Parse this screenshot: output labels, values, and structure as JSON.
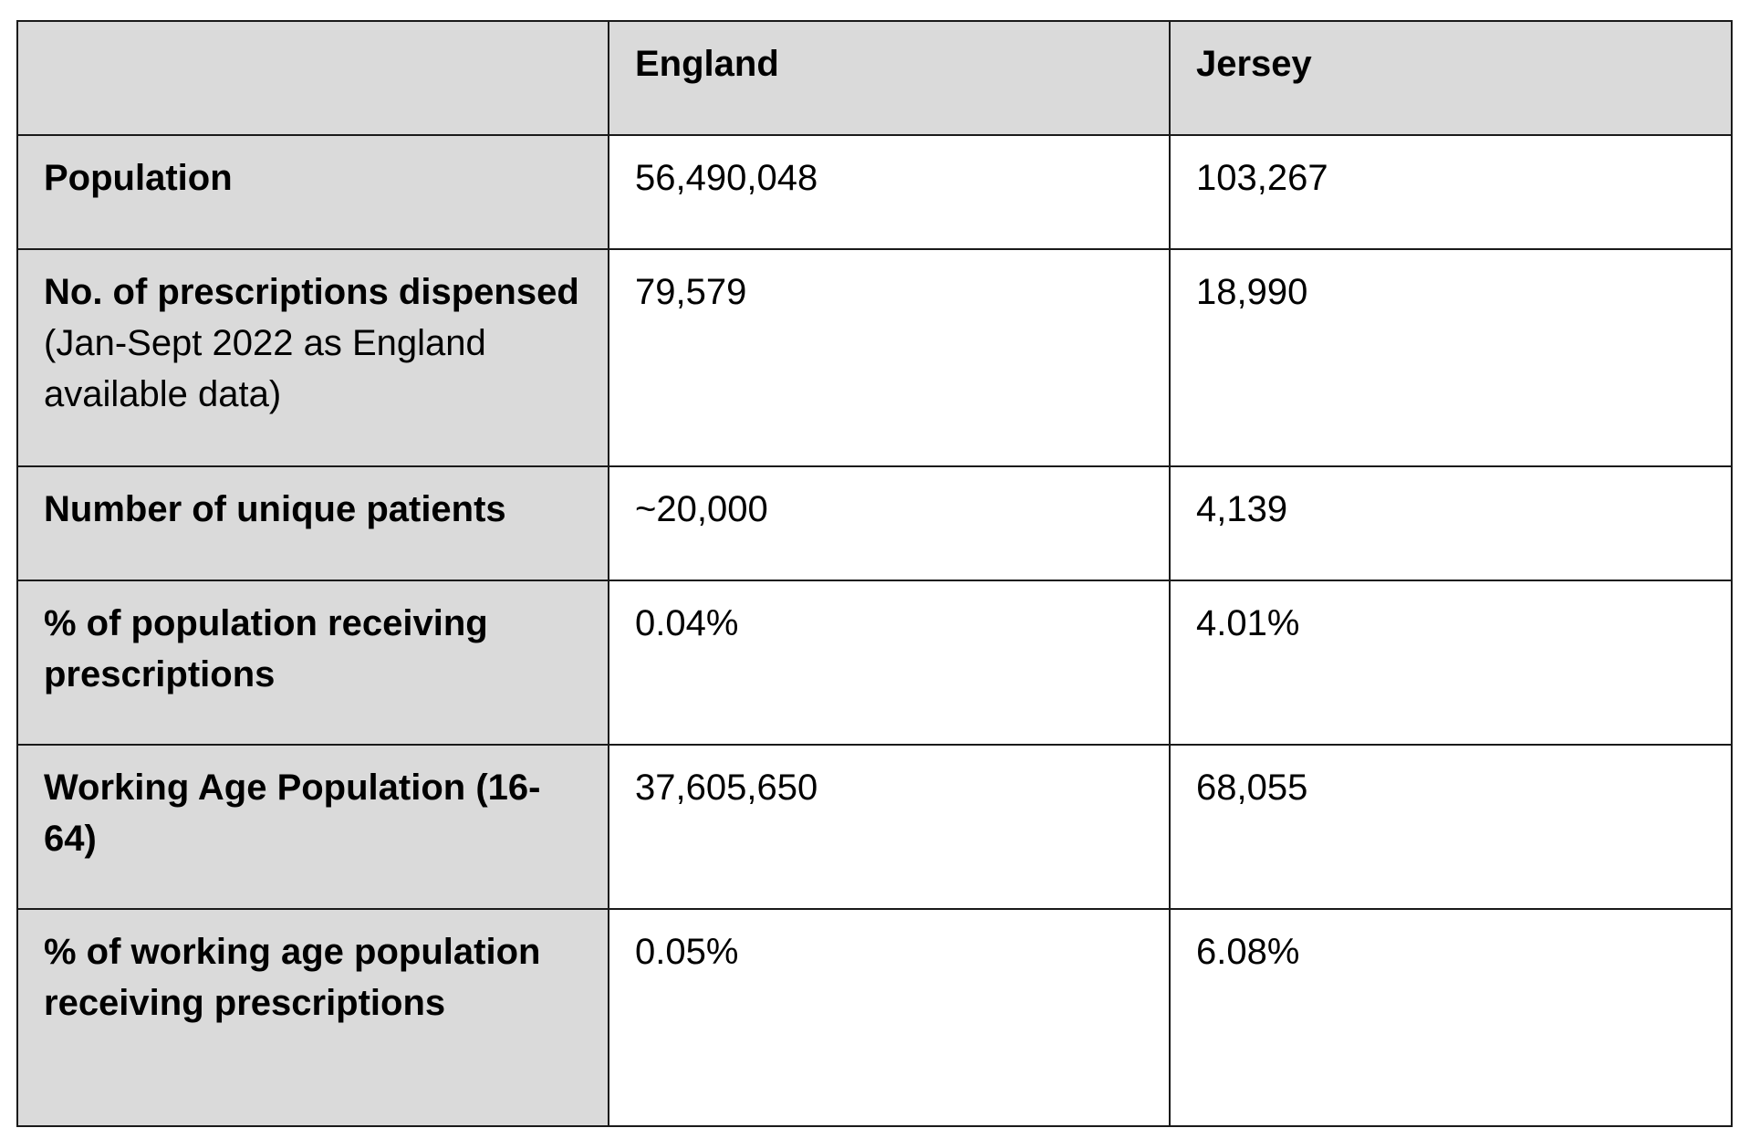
{
  "header": {
    "corner": "",
    "england": "England",
    "jersey": "Jersey"
  },
  "rows": [
    {
      "label_bold": "Population",
      "label_normal": "",
      "england": "56,490,048",
      "jersey": "103,267"
    },
    {
      "label_bold": "No. of prescriptions dispensed",
      "label_normal": " (Jan-Sept 2022 as England available data)",
      "england": "79,579",
      "jersey": "18,990"
    },
    {
      "label_bold": "Number of unique patients",
      "label_normal": "",
      "england": "~20,000",
      "jersey": "4,139"
    },
    {
      "label_bold": "% of population receiving prescriptions",
      "label_normal": "",
      "england": "0.04%",
      "jersey": "4.01%"
    },
    {
      "label_bold": "Working Age Population (16-64)",
      "label_normal": "",
      "england": "37,605,650",
      "jersey": "68,055"
    },
    {
      "label_bold": "% of working age population receiving prescriptions",
      "label_normal": "",
      "england": "0.05%",
      "jersey": "6.08%"
    }
  ],
  "colors": {
    "shade": "#dadada",
    "border": "#1a1a1a",
    "cell": "#ffffff"
  }
}
